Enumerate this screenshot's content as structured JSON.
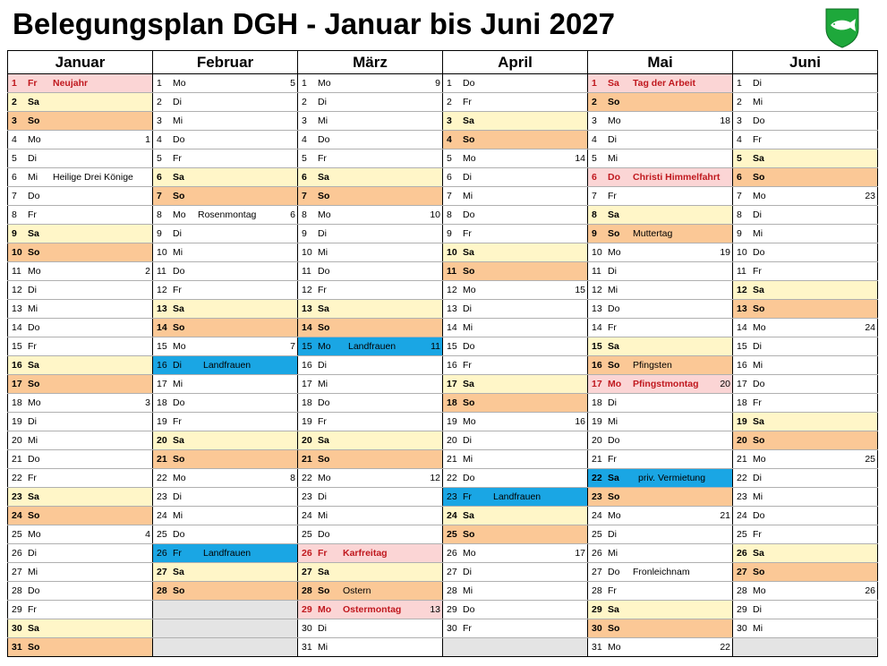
{
  "title": "Belegungsplan DGH - Januar bis Juni 2027",
  "logo": {
    "icon": "fish-crest-icon",
    "colors": {
      "shield": "#1ea83b",
      "fish": "#ffffff"
    }
  },
  "colors": {
    "saturday": "#fff6c8",
    "sunday": "#fbc896",
    "holiday": "#fbd5d5",
    "booking": "#1aa6e4",
    "empty": "#e4e4e4",
    "holiday_text": "#c0181e"
  },
  "months": [
    {
      "name": "Januar",
      "days": [
        {
          "d": "1",
          "w": "Fr",
          "h": "Neujahr",
          "t": "hol"
        },
        {
          "d": "2",
          "w": "Sa",
          "t": "sa"
        },
        {
          "d": "3",
          "w": "So",
          "t": "so"
        },
        {
          "d": "4",
          "w": "Mo",
          "kw": "1"
        },
        {
          "d": "5",
          "w": "Di"
        },
        {
          "d": "6",
          "w": "Mi",
          "h": "Heilige Drei Könige"
        },
        {
          "d": "7",
          "w": "Do"
        },
        {
          "d": "8",
          "w": "Fr"
        },
        {
          "d": "9",
          "w": "Sa",
          "t": "sa"
        },
        {
          "d": "10",
          "w": "So",
          "t": "so"
        },
        {
          "d": "11",
          "w": "Mo",
          "kw": "2"
        },
        {
          "d": "12",
          "w": "Di"
        },
        {
          "d": "13",
          "w": "Mi"
        },
        {
          "d": "14",
          "w": "Do"
        },
        {
          "d": "15",
          "w": "Fr"
        },
        {
          "d": "16",
          "w": "Sa",
          "t": "sa"
        },
        {
          "d": "17",
          "w": "So",
          "t": "so"
        },
        {
          "d": "18",
          "w": "Mo",
          "kw": "3"
        },
        {
          "d": "19",
          "w": "Di"
        },
        {
          "d": "20",
          "w": "Mi"
        },
        {
          "d": "21",
          "w": "Do"
        },
        {
          "d": "22",
          "w": "Fr"
        },
        {
          "d": "23",
          "w": "Sa",
          "t": "sa"
        },
        {
          "d": "24",
          "w": "So",
          "t": "so"
        },
        {
          "d": "25",
          "w": "Mo",
          "kw": "4"
        },
        {
          "d": "26",
          "w": "Di"
        },
        {
          "d": "27",
          "w": "Mi"
        },
        {
          "d": "28",
          "w": "Do"
        },
        {
          "d": "29",
          "w": "Fr"
        },
        {
          "d": "30",
          "w": "Sa",
          "t": "sa"
        },
        {
          "d": "31",
          "w": "So",
          "t": "so"
        }
      ]
    },
    {
      "name": "Februar",
      "days": [
        {
          "d": "1",
          "w": "Mo",
          "kw": "5"
        },
        {
          "d": "2",
          "w": "Di"
        },
        {
          "d": "3",
          "w": "Mi"
        },
        {
          "d": "4",
          "w": "Do"
        },
        {
          "d": "5",
          "w": "Fr"
        },
        {
          "d": "6",
          "w": "Sa",
          "t": "sa"
        },
        {
          "d": "7",
          "w": "So",
          "t": "so"
        },
        {
          "d": "8",
          "w": "Mo",
          "h": "Rosenmontag",
          "kw": "6"
        },
        {
          "d": "9",
          "w": "Di"
        },
        {
          "d": "10",
          "w": "Mi"
        },
        {
          "d": "11",
          "w": "Do"
        },
        {
          "d": "12",
          "w": "Fr"
        },
        {
          "d": "13",
          "w": "Sa",
          "t": "sa"
        },
        {
          "d": "14",
          "w": "So",
          "t": "so"
        },
        {
          "d": "15",
          "w": "Mo",
          "kw": "7"
        },
        {
          "d": "16",
          "w": "Di",
          "h": "Landfrauen",
          "t": "lf"
        },
        {
          "d": "17",
          "w": "Mi"
        },
        {
          "d": "18",
          "w": "Do"
        },
        {
          "d": "19",
          "w": "Fr"
        },
        {
          "d": "20",
          "w": "Sa",
          "t": "sa"
        },
        {
          "d": "21",
          "w": "So",
          "t": "so"
        },
        {
          "d": "22",
          "w": "Mo",
          "kw": "8"
        },
        {
          "d": "23",
          "w": "Di"
        },
        {
          "d": "24",
          "w": "Mi"
        },
        {
          "d": "25",
          "w": "Do"
        },
        {
          "d": "26",
          "w": "Fr",
          "h": "Landfrauen",
          "t": "lf"
        },
        {
          "d": "27",
          "w": "Sa",
          "t": "sa"
        },
        {
          "d": "28",
          "w": "So",
          "t": "so"
        }
      ]
    },
    {
      "name": "März",
      "days": [
        {
          "d": "1",
          "w": "Mo",
          "kw": "9"
        },
        {
          "d": "2",
          "w": "Di"
        },
        {
          "d": "3",
          "w": "Mi"
        },
        {
          "d": "4",
          "w": "Do"
        },
        {
          "d": "5",
          "w": "Fr"
        },
        {
          "d": "6",
          "w": "Sa",
          "t": "sa"
        },
        {
          "d": "7",
          "w": "So",
          "t": "so"
        },
        {
          "d": "8",
          "w": "Mo",
          "kw": "10"
        },
        {
          "d": "9",
          "w": "Di"
        },
        {
          "d": "10",
          "w": "Mi"
        },
        {
          "d": "11",
          "w": "Do"
        },
        {
          "d": "12",
          "w": "Fr"
        },
        {
          "d": "13",
          "w": "Sa",
          "t": "sa"
        },
        {
          "d": "14",
          "w": "So",
          "t": "so"
        },
        {
          "d": "15",
          "w": "Mo",
          "h": "Landfrauen",
          "kw": "11",
          "t": "lf"
        },
        {
          "d": "16",
          "w": "Di"
        },
        {
          "d": "17",
          "w": "Mi"
        },
        {
          "d": "18",
          "w": "Do"
        },
        {
          "d": "19",
          "w": "Fr"
        },
        {
          "d": "20",
          "w": "Sa",
          "t": "sa"
        },
        {
          "d": "21",
          "w": "So",
          "t": "so"
        },
        {
          "d": "22",
          "w": "Mo",
          "kw": "12"
        },
        {
          "d": "23",
          "w": "Di"
        },
        {
          "d": "24",
          "w": "Mi"
        },
        {
          "d": "25",
          "w": "Do"
        },
        {
          "d": "26",
          "w": "Fr",
          "h": "Karfreitag",
          "t": "hol"
        },
        {
          "d": "27",
          "w": "Sa",
          "t": "sa"
        },
        {
          "d": "28",
          "w": "So",
          "h": "Ostern",
          "t": "so"
        },
        {
          "d": "29",
          "w": "Mo",
          "h": "Ostermontag",
          "kw": "13",
          "t": "hol"
        },
        {
          "d": "30",
          "w": "Di"
        },
        {
          "d": "31",
          "w": "Mi"
        }
      ]
    },
    {
      "name": "April",
      "days": [
        {
          "d": "1",
          "w": "Do"
        },
        {
          "d": "2",
          "w": "Fr"
        },
        {
          "d": "3",
          "w": "Sa",
          "t": "sa"
        },
        {
          "d": "4",
          "w": "So",
          "t": "so"
        },
        {
          "d": "5",
          "w": "Mo",
          "kw": "14"
        },
        {
          "d": "6",
          "w": "Di"
        },
        {
          "d": "7",
          "w": "Mi"
        },
        {
          "d": "8",
          "w": "Do"
        },
        {
          "d": "9",
          "w": "Fr"
        },
        {
          "d": "10",
          "w": "Sa",
          "t": "sa"
        },
        {
          "d": "11",
          "w": "So",
          "t": "so"
        },
        {
          "d": "12",
          "w": "Mo",
          "kw": "15"
        },
        {
          "d": "13",
          "w": "Di"
        },
        {
          "d": "14",
          "w": "Mi"
        },
        {
          "d": "15",
          "w": "Do"
        },
        {
          "d": "16",
          "w": "Fr"
        },
        {
          "d": "17",
          "w": "Sa",
          "t": "sa"
        },
        {
          "d": "18",
          "w": "So",
          "t": "so"
        },
        {
          "d": "19",
          "w": "Mo",
          "kw": "16"
        },
        {
          "d": "20",
          "w": "Di"
        },
        {
          "d": "21",
          "w": "Mi"
        },
        {
          "d": "22",
          "w": "Do"
        },
        {
          "d": "23",
          "w": "Fr",
          "h": "Landfrauen",
          "t": "lf"
        },
        {
          "d": "24",
          "w": "Sa",
          "t": "sa"
        },
        {
          "d": "25",
          "w": "So",
          "t": "so"
        },
        {
          "d": "26",
          "w": "Mo",
          "kw": "17"
        },
        {
          "d": "27",
          "w": "Di"
        },
        {
          "d": "28",
          "w": "Mi"
        },
        {
          "d": "29",
          "w": "Do"
        },
        {
          "d": "30",
          "w": "Fr"
        }
      ]
    },
    {
      "name": "Mai",
      "days": [
        {
          "d": "1",
          "w": "Sa",
          "h": "Tag der Arbeit",
          "t": "hol"
        },
        {
          "d": "2",
          "w": "So",
          "t": "so"
        },
        {
          "d": "3",
          "w": "Mo",
          "kw": "18"
        },
        {
          "d": "4",
          "w": "Di"
        },
        {
          "d": "5",
          "w": "Mi"
        },
        {
          "d": "6",
          "w": "Do",
          "h": "Christi Himmelfahrt",
          "t": "hol"
        },
        {
          "d": "7",
          "w": "Fr"
        },
        {
          "d": "8",
          "w": "Sa",
          "t": "sa"
        },
        {
          "d": "9",
          "w": "So",
          "h": "Muttertag",
          "t": "so"
        },
        {
          "d": "10",
          "w": "Mo",
          "kw": "19"
        },
        {
          "d": "11",
          "w": "Di"
        },
        {
          "d": "12",
          "w": "Mi"
        },
        {
          "d": "13",
          "w": "Do"
        },
        {
          "d": "14",
          "w": "Fr"
        },
        {
          "d": "15",
          "w": "Sa",
          "t": "sa"
        },
        {
          "d": "16",
          "w": "So",
          "h": "Pfingsten",
          "t": "so"
        },
        {
          "d": "17",
          "w": "Mo",
          "h": "Pfingstmontag",
          "kw": "20",
          "t": "hol"
        },
        {
          "d": "18",
          "w": "Di"
        },
        {
          "d": "19",
          "w": "Mi"
        },
        {
          "d": "20",
          "w": "Do"
        },
        {
          "d": "21",
          "w": "Fr"
        },
        {
          "d": "22",
          "w": "Sa",
          "h": "priv. Vermietung",
          "t": "lfsa"
        },
        {
          "d": "23",
          "w": "So",
          "t": "so"
        },
        {
          "d": "24",
          "w": "Mo",
          "kw": "21"
        },
        {
          "d": "25",
          "w": "Di"
        },
        {
          "d": "26",
          "w": "Mi"
        },
        {
          "d": "27",
          "w": "Do",
          "h": "Fronleichnam"
        },
        {
          "d": "28",
          "w": "Fr"
        },
        {
          "d": "29",
          "w": "Sa",
          "t": "sa"
        },
        {
          "d": "30",
          "w": "So",
          "t": "so"
        },
        {
          "d": "31",
          "w": "Mo",
          "kw": "22"
        }
      ]
    },
    {
      "name": "Juni",
      "days": [
        {
          "d": "1",
          "w": "Di"
        },
        {
          "d": "2",
          "w": "Mi"
        },
        {
          "d": "3",
          "w": "Do"
        },
        {
          "d": "4",
          "w": "Fr"
        },
        {
          "d": "5",
          "w": "Sa",
          "t": "sa"
        },
        {
          "d": "6",
          "w": "So",
          "t": "so"
        },
        {
          "d": "7",
          "w": "Mo",
          "kw": "23"
        },
        {
          "d": "8",
          "w": "Di"
        },
        {
          "d": "9",
          "w": "Mi"
        },
        {
          "d": "10",
          "w": "Do"
        },
        {
          "d": "11",
          "w": "Fr"
        },
        {
          "d": "12",
          "w": "Sa",
          "t": "sa"
        },
        {
          "d": "13",
          "w": "So",
          "t": "so"
        },
        {
          "d": "14",
          "w": "Mo",
          "kw": "24"
        },
        {
          "d": "15",
          "w": "Di"
        },
        {
          "d": "16",
          "w": "Mi"
        },
        {
          "d": "17",
          "w": "Do"
        },
        {
          "d": "18",
          "w": "Fr"
        },
        {
          "d": "19",
          "w": "Sa",
          "t": "sa"
        },
        {
          "d": "20",
          "w": "So",
          "t": "so"
        },
        {
          "d": "21",
          "w": "Mo",
          "kw": "25"
        },
        {
          "d": "22",
          "w": "Di"
        },
        {
          "d": "23",
          "w": "Mi"
        },
        {
          "d": "24",
          "w": "Do"
        },
        {
          "d": "25",
          "w": "Fr"
        },
        {
          "d": "26",
          "w": "Sa",
          "t": "sa"
        },
        {
          "d": "27",
          "w": "So",
          "t": "so"
        },
        {
          "d": "28",
          "w": "Mo",
          "kw": "26"
        },
        {
          "d": "29",
          "w": "Di"
        },
        {
          "d": "30",
          "w": "Mi"
        }
      ]
    }
  ]
}
